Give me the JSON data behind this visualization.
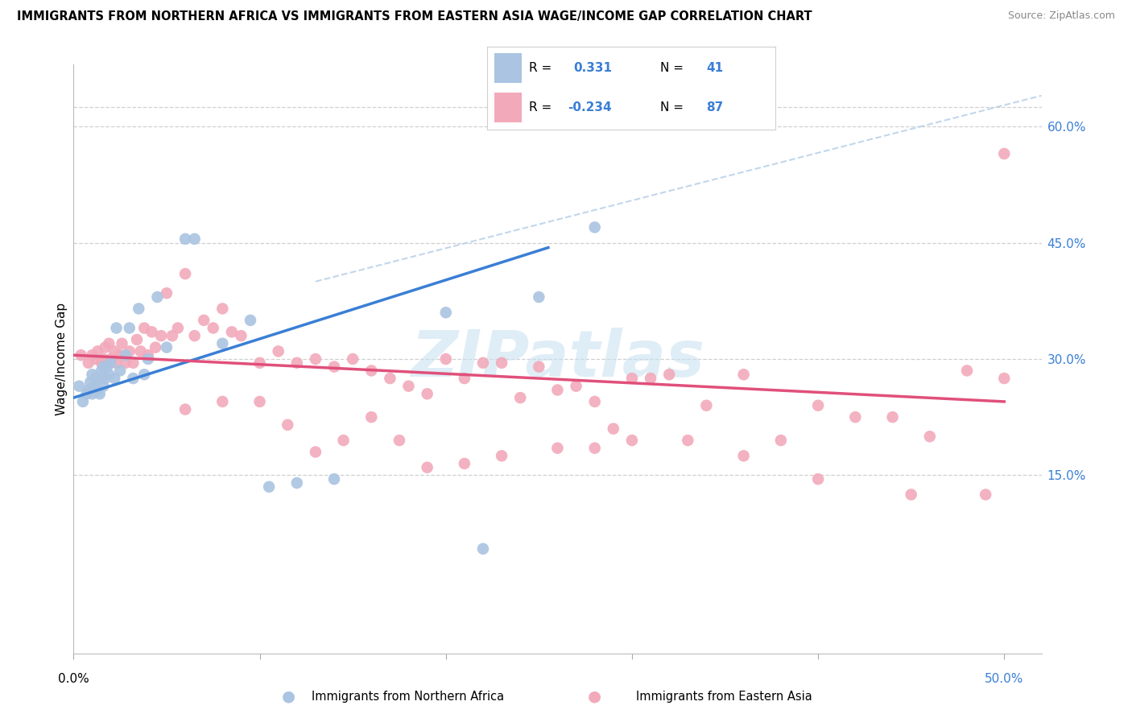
{
  "title": "IMMIGRANTS FROM NORTHERN AFRICA VS IMMIGRANTS FROM EASTERN ASIA WAGE/INCOME GAP CORRELATION CHART",
  "source": "Source: ZipAtlas.com",
  "ylabel": "Wage/Income Gap",
  "xlim": [
    0.0,
    0.52
  ],
  "ylim": [
    -0.08,
    0.68
  ],
  "ytick_values": [
    0.15,
    0.3,
    0.45,
    0.6
  ],
  "xtick_values": [
    0.0,
    0.1,
    0.2,
    0.3,
    0.4,
    0.5
  ],
  "blue_r": "0.331",
  "blue_n": "41",
  "pink_r": "-0.234",
  "pink_n": "87",
  "blue_fill": "#aac4e2",
  "pink_fill": "#f2aabb",
  "blue_line": "#3a7fd5",
  "pink_line": "#e0507a",
  "blue_dash": "#b8d0e8",
  "label_color": "#3a7fd5",
  "grid_color": "#d0d0d0",
  "watermark_color": "#c5dff0",
  "legend_label_blue": "Immigrants from Northern Africa",
  "legend_label_pink": "Immigrants from Eastern Asia",
  "blue_scatter_x": [
    0.003,
    0.005,
    0.007,
    0.008,
    0.009,
    0.01,
    0.01,
    0.011,
    0.012,
    0.013,
    0.014,
    0.015,
    0.015,
    0.016,
    0.016,
    0.017,
    0.018,
    0.019,
    0.02,
    0.022,
    0.023,
    0.025,
    0.028,
    0.03,
    0.032,
    0.035,
    0.038,
    0.04,
    0.045,
    0.05,
    0.06,
    0.065,
    0.08,
    0.095,
    0.105,
    0.12,
    0.14,
    0.2,
    0.22,
    0.25,
    0.28
  ],
  "blue_scatter_y": [
    0.265,
    0.245,
    0.255,
    0.26,
    0.27,
    0.255,
    0.28,
    0.265,
    0.275,
    0.26,
    0.255,
    0.275,
    0.285,
    0.265,
    0.29,
    0.275,
    0.29,
    0.28,
    0.295,
    0.275,
    0.34,
    0.285,
    0.305,
    0.34,
    0.275,
    0.365,
    0.28,
    0.3,
    0.38,
    0.315,
    0.455,
    0.455,
    0.32,
    0.35,
    0.135,
    0.14,
    0.145,
    0.36,
    0.055,
    0.38,
    0.47
  ],
  "pink_scatter_x": [
    0.004,
    0.008,
    0.01,
    0.012,
    0.013,
    0.015,
    0.016,
    0.017,
    0.018,
    0.019,
    0.02,
    0.022,
    0.023,
    0.025,
    0.026,
    0.028,
    0.03,
    0.032,
    0.034,
    0.036,
    0.038,
    0.04,
    0.042,
    0.044,
    0.047,
    0.05,
    0.053,
    0.056,
    0.06,
    0.065,
    0.07,
    0.075,
    0.08,
    0.085,
    0.09,
    0.1,
    0.11,
    0.12,
    0.13,
    0.14,
    0.15,
    0.16,
    0.17,
    0.18,
    0.19,
    0.2,
    0.21,
    0.22,
    0.23,
    0.24,
    0.25,
    0.26,
    0.27,
    0.28,
    0.29,
    0.3,
    0.31,
    0.32,
    0.34,
    0.36,
    0.38,
    0.4,
    0.42,
    0.44,
    0.46,
    0.48,
    0.5,
    0.5,
    0.06,
    0.08,
    0.1,
    0.115,
    0.13,
    0.145,
    0.16,
    0.175,
    0.19,
    0.21,
    0.23,
    0.26,
    0.28,
    0.3,
    0.33,
    0.36,
    0.4,
    0.45,
    0.49
  ],
  "pink_scatter_y": [
    0.305,
    0.295,
    0.305,
    0.3,
    0.31,
    0.295,
    0.3,
    0.315,
    0.295,
    0.32,
    0.3,
    0.31,
    0.295,
    0.305,
    0.32,
    0.295,
    0.31,
    0.295,
    0.325,
    0.31,
    0.34,
    0.305,
    0.335,
    0.315,
    0.33,
    0.385,
    0.33,
    0.34,
    0.41,
    0.33,
    0.35,
    0.34,
    0.365,
    0.335,
    0.33,
    0.295,
    0.31,
    0.295,
    0.3,
    0.29,
    0.3,
    0.285,
    0.275,
    0.265,
    0.255,
    0.3,
    0.275,
    0.295,
    0.295,
    0.25,
    0.29,
    0.26,
    0.265,
    0.245,
    0.21,
    0.275,
    0.275,
    0.28,
    0.24,
    0.28,
    0.195,
    0.24,
    0.225,
    0.225,
    0.2,
    0.285,
    0.275,
    0.565,
    0.235,
    0.245,
    0.245,
    0.215,
    0.18,
    0.195,
    0.225,
    0.195,
    0.16,
    0.165,
    0.175,
    0.185,
    0.185,
    0.195,
    0.195,
    0.175,
    0.145,
    0.125,
    0.125
  ]
}
